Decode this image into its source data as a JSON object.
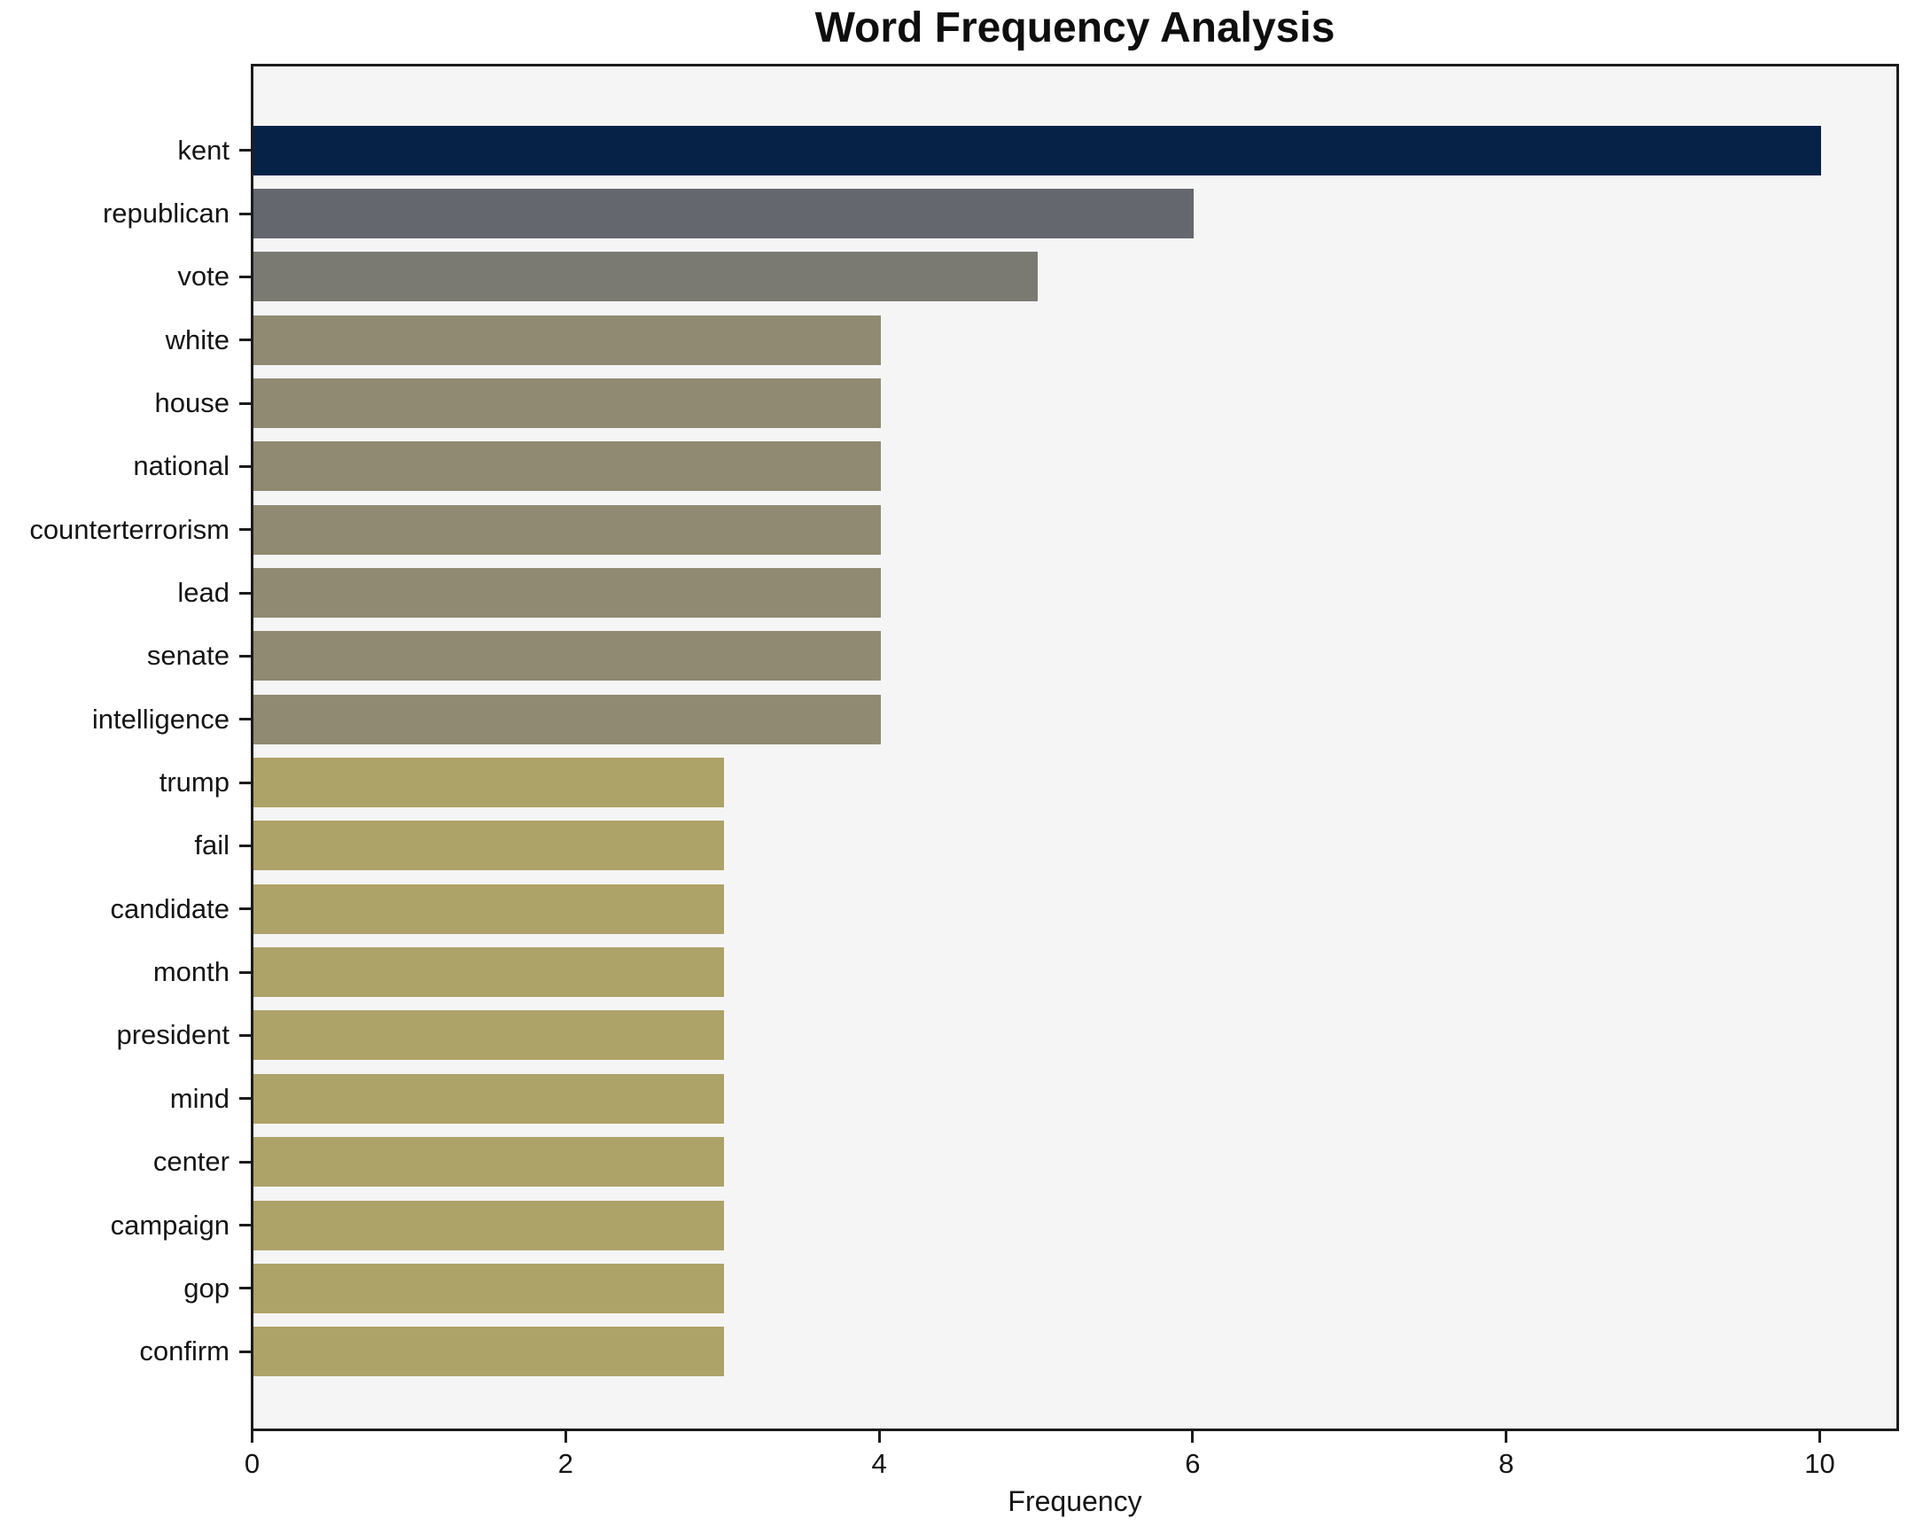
{
  "title": "Word Frequency Analysis",
  "chart_data": {
    "type": "bar",
    "orientation": "horizontal",
    "title": "Word Frequency Analysis",
    "xlabel": "Frequency",
    "ylabel": "",
    "categories": [
      "kent",
      "republican",
      "vote",
      "white",
      "house",
      "national",
      "counterterrorism",
      "lead",
      "senate",
      "intelligence",
      "trump",
      "fail",
      "candidate",
      "month",
      "president",
      "mind",
      "center",
      "campaign",
      "gop",
      "confirm"
    ],
    "values": [
      10,
      6,
      5,
      4,
      4,
      4,
      4,
      4,
      4,
      4,
      3,
      3,
      3,
      3,
      3,
      3,
      3,
      3,
      3,
      3
    ],
    "bar_colors": [
      "#072247",
      "#65676f",
      "#7a7a73",
      "#908a72",
      "#908a72",
      "#908a72",
      "#908a72",
      "#908a72",
      "#908a72",
      "#908a72",
      "#ada268",
      "#ada268",
      "#ada268",
      "#ada268",
      "#ada268",
      "#ada268",
      "#ada268",
      "#ada268",
      "#ada268",
      "#ada268"
    ],
    "x_ticks": [
      0,
      2,
      4,
      6,
      8,
      10
    ],
    "xlim": [
      0,
      10.5
    ],
    "grid": false,
    "legend_position": "none",
    "plot_background": "#f5f5f6",
    "figure_background": "#ffffff",
    "spine_color": "#1c1c1c"
  }
}
